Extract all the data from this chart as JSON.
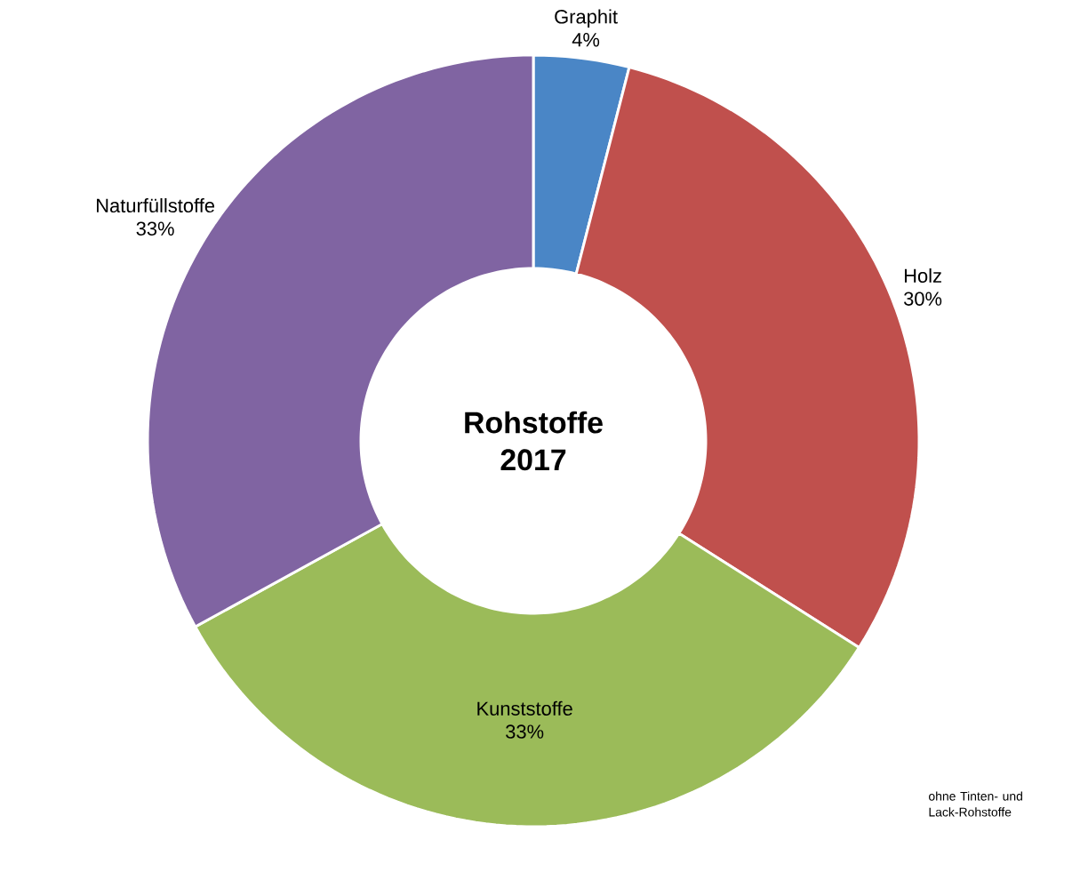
{
  "chart_data": {
    "type": "donut",
    "title": "Rohstoffe 2017",
    "categories": [
      "Graphit",
      "Holz",
      "Kunststoffe",
      "Naturfüllstoffe"
    ],
    "values": [
      4,
      30,
      33,
      33
    ],
    "value_labels": [
      "4%",
      "30%",
      "33%",
      "33%"
    ],
    "colors": [
      "#4a86c6",
      "#c0504d",
      "#9bbb59",
      "#8064a2"
    ],
    "annotations": [
      "ohne Tinten- und Lack-Rohstoffe"
    ]
  }
}
